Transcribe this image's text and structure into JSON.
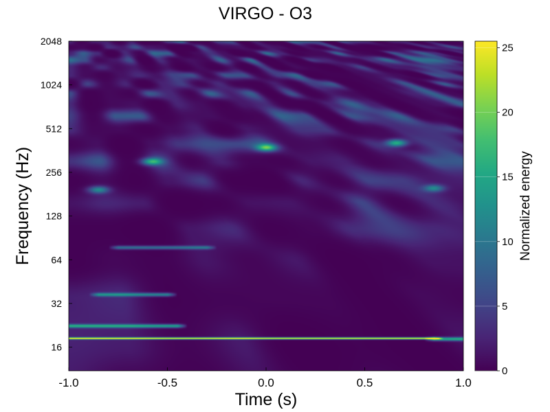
{
  "chart_data": {
    "type": "heatmap",
    "title": "VIRGO - O3",
    "xlabel": "Time (s)",
    "ylabel": "Frequency (Hz)",
    "xlim": [
      -1.0,
      1.0
    ],
    "ylim": [
      11,
      2048
    ],
    "yscale": "log2",
    "x_ticks": [
      -1.0,
      -0.5,
      0.0,
      0.5,
      1.0
    ],
    "x_tick_labels": [
      "-1.0",
      "-0.5",
      "0.0",
      "0.5",
      "1.0"
    ],
    "y_ticks": [
      16,
      32,
      64,
      128,
      256,
      512,
      1024,
      2048
    ],
    "y_tick_labels": [
      "16",
      "32",
      "64",
      "128",
      "256",
      "512",
      "1024",
      "2048"
    ],
    "colorbar": {
      "label": "Normalized energy",
      "range": [
        0,
        25.5
      ],
      "ticks": [
        0,
        5,
        10,
        15,
        20,
        25
      ],
      "tick_labels": [
        "0",
        "5",
        "10",
        "15",
        "20",
        "25"
      ],
      "colormap": "viridis"
    },
    "features": [
      {
        "freq": 18.5,
        "t_start": -1.0,
        "t_end": 0.85,
        "energy": 25,
        "note": "strong narrow line"
      },
      {
        "freq": 18.3,
        "t_start": 0.85,
        "t_end": 1.0,
        "energy": 15
      },
      {
        "freq": 22.5,
        "t_start": -1.0,
        "t_end": -0.45,
        "energy": 14
      },
      {
        "freq": 37,
        "t_start": -0.85,
        "t_end": -0.5,
        "energy": 11
      },
      {
        "freq": 78,
        "t_start": -0.75,
        "t_end": -0.3,
        "energy": 9
      },
      {
        "freq": 305,
        "t": -0.58,
        "energy": 14
      },
      {
        "freq": 380,
        "t": 0.0,
        "energy": 15
      },
      {
        "freq": 410,
        "t": 0.66,
        "energy": 15
      },
      {
        "freq": 195,
        "t": -0.85,
        "energy": 11
      },
      {
        "freq": 200,
        "t": 0.85,
        "energy": 10
      }
    ]
  }
}
